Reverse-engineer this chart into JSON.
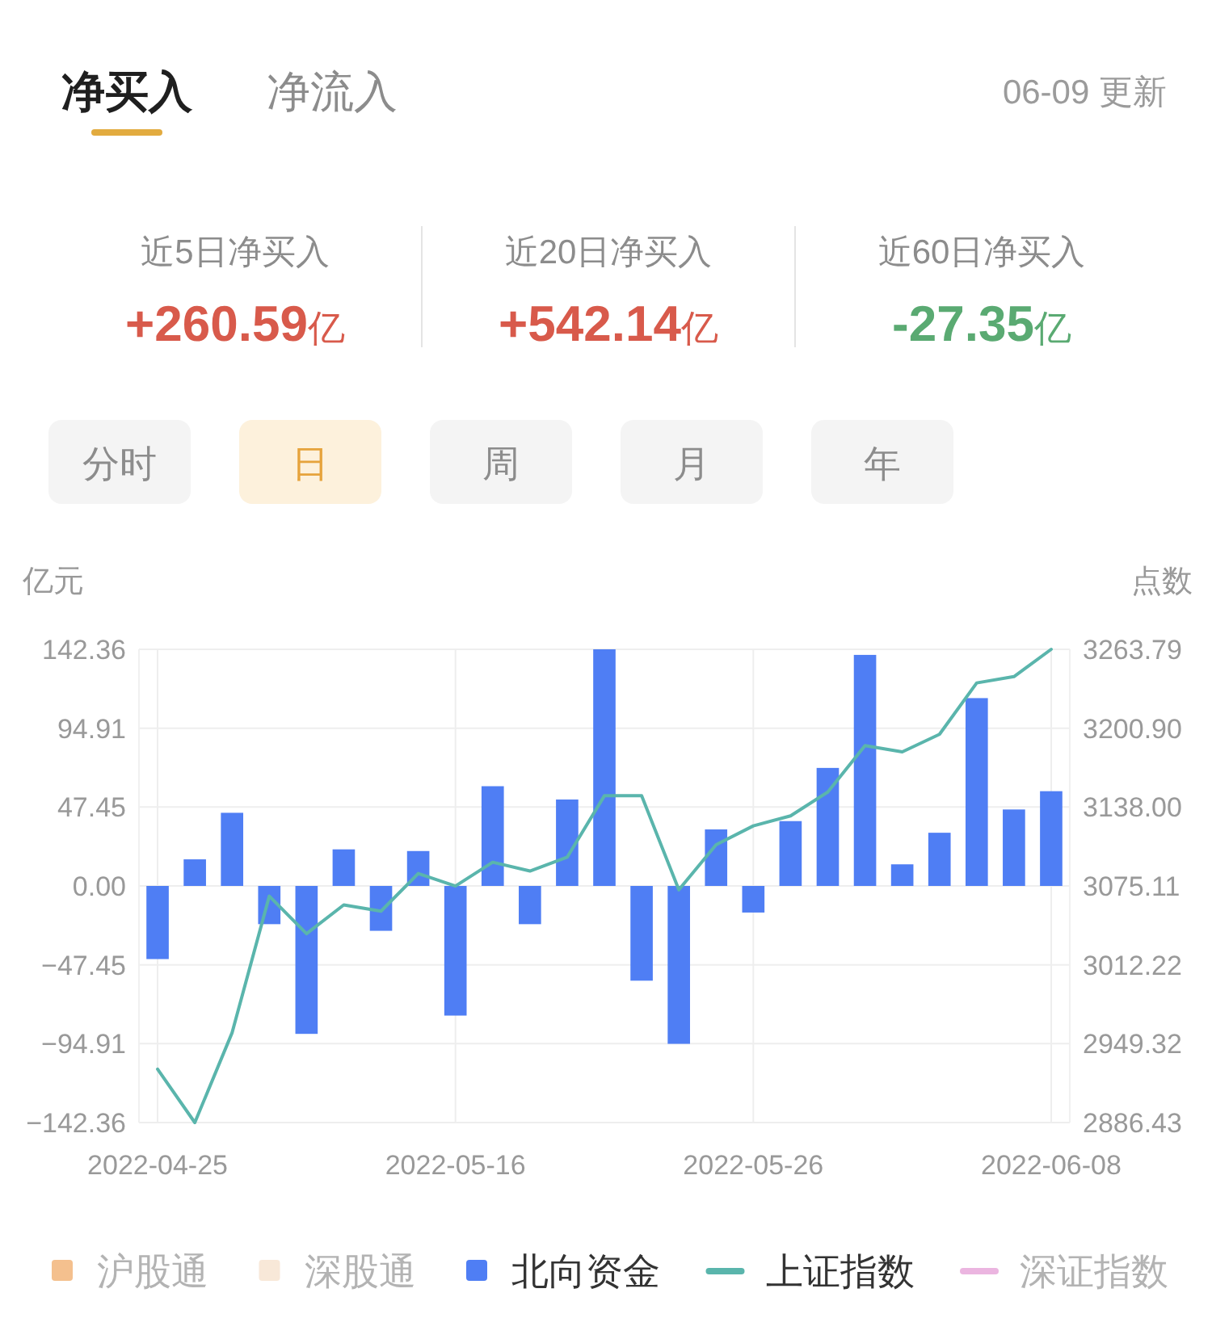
{
  "chart_data": [
    {
      "type": "other",
      "categories": [
        "近5日净买入",
        "近20日净买入",
        "近60日净买入"
      ],
      "values": [
        260.59,
        542.14,
        -27.35
      ],
      "value_labels": [
        "+260.59亿",
        "+542.14亿",
        "-27.35亿"
      ],
      "colors": [
        "#d85a4b",
        "#d85a4b",
        "#5aaa72"
      ],
      "annotations": [
        "净买入",
        "净流入",
        "06-09 更新",
        "分时",
        "日",
        "周",
        "月",
        "年"
      ]
    },
    {
      "type": "bar",
      "ylabel": "亿元",
      "y2label": "点数",
      "categories": [
        "2022-04-25",
        null,
        null,
        null,
        null,
        null,
        null,
        null,
        "2022-05-16",
        null,
        null,
        null,
        null,
        null,
        null,
        null,
        "2022-05-26",
        null,
        null,
        null,
        null,
        null,
        null,
        null,
        "2022-06-08"
      ],
      "series": [
        {
          "name": "沪股通",
          "color": "#f4c08e",
          "values": [
            null,
            null,
            null,
            null,
            null,
            null,
            null,
            null,
            null,
            null,
            null,
            null,
            null,
            null,
            null,
            null,
            null,
            null,
            null,
            null,
            null,
            null,
            null,
            null,
            null
          ]
        },
        {
          "name": "深股通",
          "color": "#f8e8d8",
          "values": [
            null,
            null,
            null,
            null,
            null,
            null,
            null,
            null,
            null,
            null,
            null,
            null,
            null,
            null,
            null,
            null,
            null,
            null,
            null,
            null,
            null,
            null,
            null,
            null,
            null
          ]
        },
        {
          "name": "北向资金",
          "color": "#4f7ef4",
          "values": [
            -44,
            16,
            44,
            -23,
            -89,
            22,
            -27,
            21,
            -78,
            60,
            -23,
            52,
            142.36,
            -57,
            -95,
            34,
            -16,
            39,
            71,
            139,
            13,
            32,
            113,
            46,
            57
          ]
        },
        {
          "name": "上证指数",
          "type": "line",
          "axis": "y2",
          "color": "#5ab5ac",
          "values": [
            2929,
            2886.43,
            2958,
            3067,
            3037,
            3060,
            3055,
            3085,
            3075,
            3094,
            3087,
            3098,
            3147,
            3147,
            3072,
            3108,
            3123,
            3131,
            3150,
            3187,
            3182,
            3196,
            3237,
            3242,
            3263.79
          ]
        },
        {
          "name": "深证指数",
          "type": "line",
          "axis": "y2",
          "color": "#ebb5e0",
          "values": [
            null,
            null,
            null,
            null,
            null,
            null,
            null,
            null,
            null,
            null,
            null,
            null,
            null,
            null,
            null,
            null,
            null,
            null,
            null,
            null,
            null,
            null,
            null,
            null,
            null
          ]
        }
      ],
      "ylim": [
        -142.36,
        142.36
      ],
      "yticks": [
        {
          "value": -142.36,
          "label": "−142.36"
        },
        {
          "value": -94.91,
          "label": "−94.91"
        },
        {
          "value": -47.45,
          "label": "−47.45"
        },
        {
          "value": 0,
          "label": "0.00"
        },
        47.45,
        94.91,
        142.36
      ],
      "y2lim": [
        2886.43,
        3263.79
      ],
      "y2ticks": [
        2886.43,
        2949.32,
        3012.22,
        3075.11,
        {
          "value": 3138,
          "label": "3138.00"
        },
        {
          "value": 3200.9,
          "label": "3200.90"
        },
        3263.79
      ],
      "grid": true,
      "legend": "bottom"
    }
  ]
}
